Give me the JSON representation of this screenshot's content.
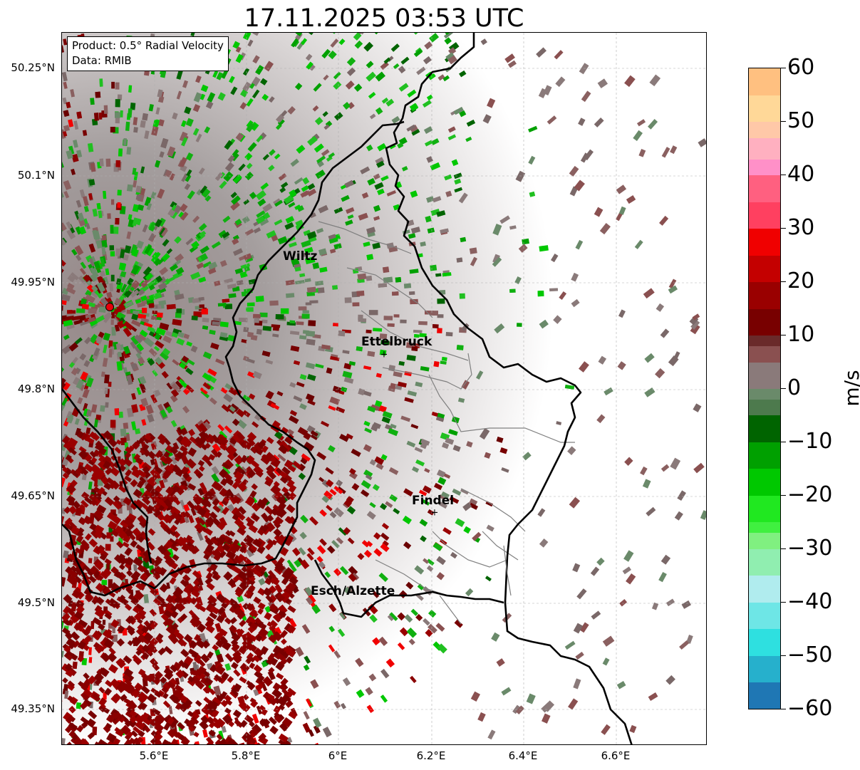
{
  "title": "17.11.2025 03:53 UTC",
  "info_box": {
    "product": "Product: 0.5° Radial Velocity",
    "source": "Data: RMIB"
  },
  "map": {
    "lat_ticks": [
      "50.25°N",
      "50.1°N",
      "49.95°N",
      "49.8°N",
      "49.65°N",
      "49.5°N",
      "49.35°N"
    ],
    "lon_ticks": [
      "5.6°E",
      "5.8°E",
      "6°E",
      "6.2°E",
      "6.4°E",
      "6.6°E"
    ],
    "extent": {
      "lon_min": 5.4,
      "lon_max": 6.8,
      "lat_min": 49.3,
      "lat_max": 50.3
    },
    "cities": [
      {
        "name": "Wiltz",
        "lon": 5.93,
        "lat": 49.97
      },
      {
        "name": "Ettelbruck",
        "lon": 6.1,
        "lat": 49.85
      },
      {
        "name": "Findel",
        "lon": 6.21,
        "lat": 49.63
      },
      {
        "name": "Esch/Alzette",
        "lon": 5.98,
        "lat": 49.5
      }
    ],
    "radar_site": {
      "lon": 5.505,
      "lat": 49.915
    }
  },
  "colorbar": {
    "unit": "m/s",
    "min": -60,
    "max": 60,
    "tick_labels": [
      "60",
      "50",
      "40",
      "30",
      "20",
      "10",
      "0",
      "−10",
      "−20",
      "−30",
      "−40",
      "−50",
      "−60"
    ],
    "tick_values": [
      60,
      50,
      40,
      30,
      20,
      10,
      0,
      -10,
      -20,
      -30,
      -40,
      -50,
      -60
    ],
    "colors": {
      "deep_inbound_blue": "#1f77b4",
      "cyan": "#2ee0e0",
      "light_cyan": "#b0ecee",
      "light_green": "#80f080",
      "green": "#00c800",
      "dark_green": "#006400",
      "gray_green": "#6a8a6a",
      "gray": "#8a7a7a",
      "gray_red": "#8a5050",
      "dark_red": "#780000",
      "red": "#f00000",
      "pink": "#ff6080",
      "light_pink": "#ffb0c0",
      "light_orange": "#ffd898",
      "orange": "#ff9a50"
    }
  }
}
